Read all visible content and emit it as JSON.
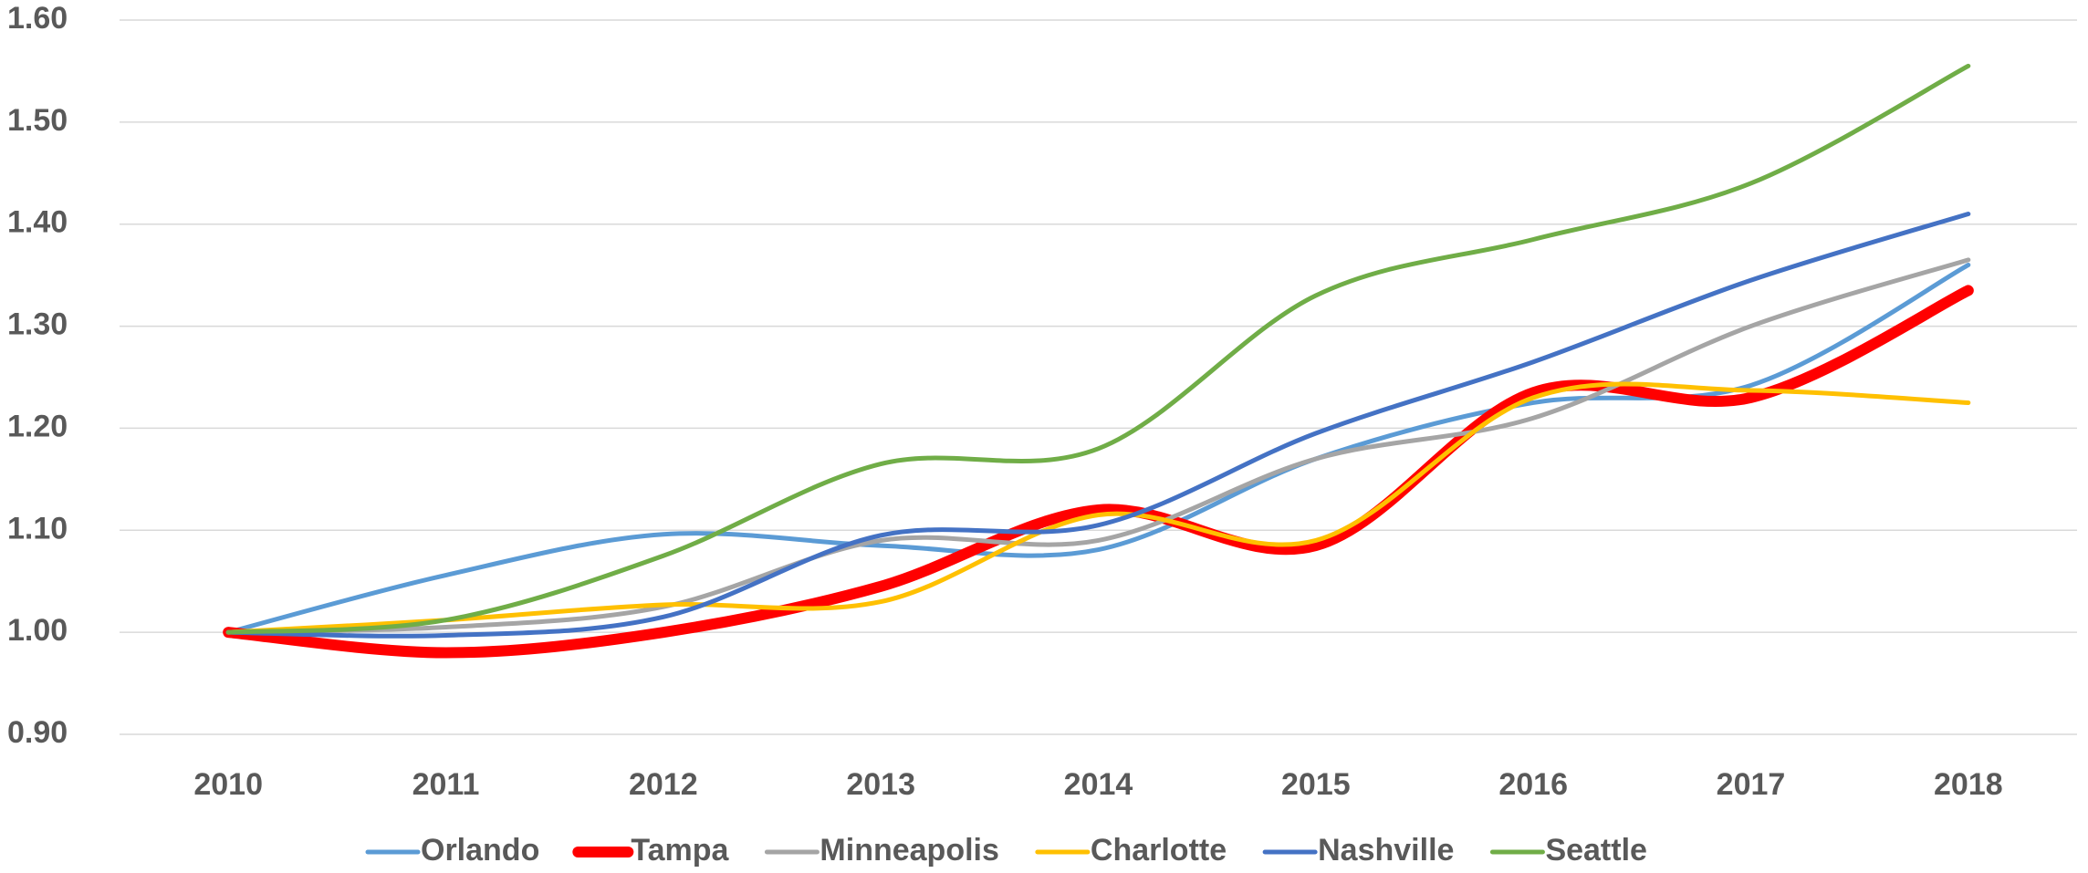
{
  "chart_data": {
    "type": "line",
    "categories": [
      "2010",
      "2011",
      "2012",
      "2013",
      "2014",
      "2015",
      "2016",
      "2017",
      "2018"
    ],
    "series": [
      {
        "name": "Orlando",
        "color": "#5b9bd5",
        "values": [
          1.0,
          1.056,
          1.096,
          1.085,
          1.081,
          1.17,
          1.225,
          1.242,
          1.36
        ]
      },
      {
        "name": "Tampa",
        "color": "#ff0000",
        "values": [
          1.0,
          0.98,
          1.0,
          1.045,
          1.12,
          1.085,
          1.235,
          1.23,
          1.335
        ]
      },
      {
        "name": "Minneapolis",
        "color": "#a5a5a5",
        "values": [
          1.0,
          1.005,
          1.025,
          1.09,
          1.09,
          1.17,
          1.21,
          1.3,
          1.365
        ]
      },
      {
        "name": "Charlotte",
        "color": "#ffc000",
        "values": [
          1.0,
          1.012,
          1.027,
          1.03,
          1.115,
          1.09,
          1.23,
          1.237,
          1.225
        ]
      },
      {
        "name": "Nashville",
        "color": "#4472c4",
        "values": [
          1.0,
          0.997,
          1.015,
          1.095,
          1.105,
          1.195,
          1.265,
          1.345,
          1.41
        ]
      },
      {
        "name": "Seattle",
        "color": "#70ad47",
        "values": [
          1.0,
          1.012,
          1.075,
          1.165,
          1.18,
          1.33,
          1.385,
          1.44,
          1.555
        ]
      }
    ],
    "ylim": [
      0.9,
      1.6
    ],
    "yticks": [
      {
        "value": 0.9,
        "label": "0.90"
      },
      {
        "value": 1.0,
        "label": "1.00"
      },
      {
        "value": 1.1,
        "label": "1.10"
      },
      {
        "value": 1.2,
        "label": "1.20"
      },
      {
        "value": 1.3,
        "label": "1.30"
      },
      {
        "value": 1.4,
        "label": "1.40"
      },
      {
        "value": 1.5,
        "label": "1.50"
      },
      {
        "value": 1.6,
        "label": "1.60"
      }
    ],
    "grid": true,
    "legend": "bottom"
  }
}
